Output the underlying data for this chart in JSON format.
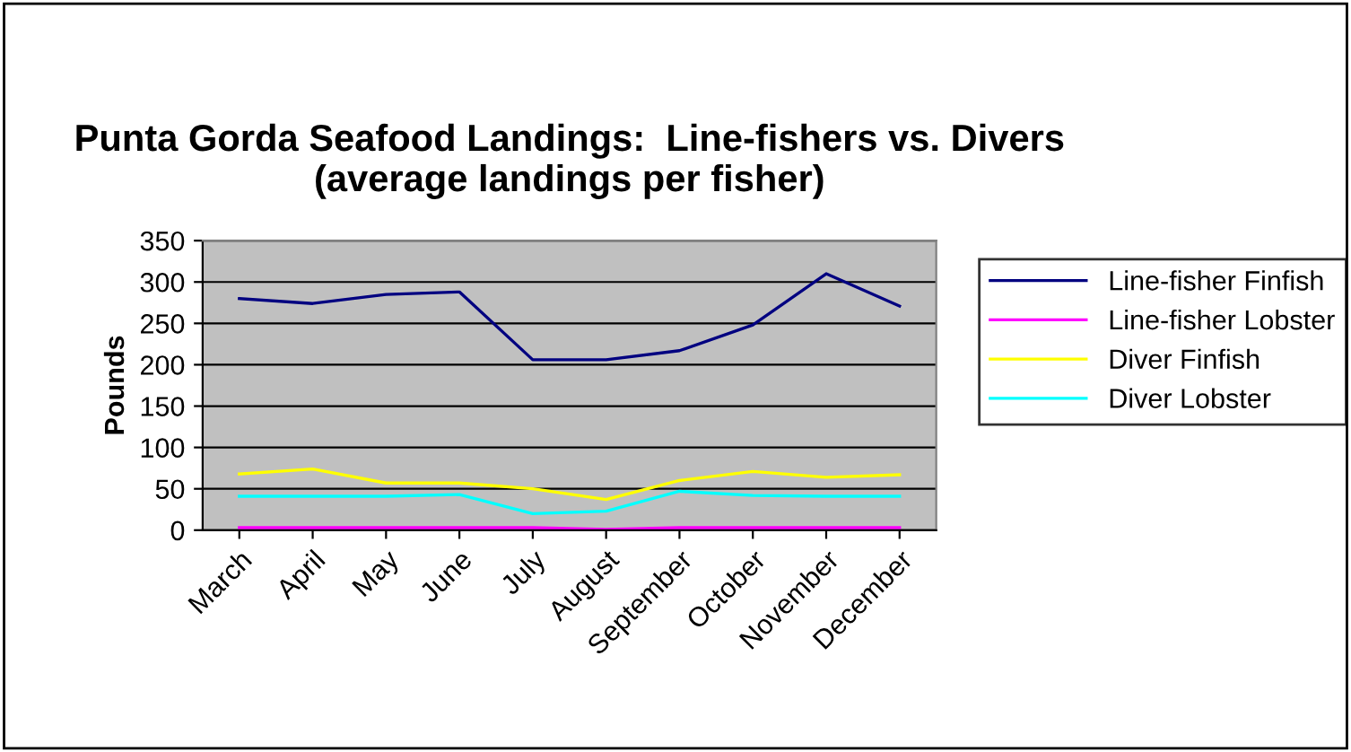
{
  "chart_data": {
    "type": "line",
    "title": "Punta Gorda Seafood Landings:  Line-fishers vs. Divers (average landings per fisher)",
    "ylabel": "Pounds",
    "categories": [
      "March",
      "April",
      "May",
      "June",
      "July",
      "August",
      "September",
      "October",
      "November",
      "December"
    ],
    "series": [
      {
        "name": "Line-fisher Finfish",
        "color": "#000080",
        "values": [
          280,
          274,
          285,
          288,
          206,
          206,
          217,
          248,
          310,
          271
        ]
      },
      {
        "name": "Line-fisher Lobster",
        "color": "#ff00ff",
        "values": [
          3,
          3,
          3,
          3,
          3,
          1,
          3,
          3,
          3,
          3
        ]
      },
      {
        "name": "Diver Finfish",
        "color": "#ffff00",
        "values": [
          68,
          74,
          57,
          57,
          50,
          37,
          60,
          71,
          64,
          67
        ]
      },
      {
        "name": "Diver Lobster",
        "color": "#00ffff",
        "values": [
          41,
          41,
          41,
          43,
          20,
          23,
          47,
          42,
          41,
          41
        ]
      }
    ],
    "ylim": [
      0,
      350
    ],
    "yticks": [
      0,
      50,
      100,
      150,
      200,
      250,
      300,
      350
    ],
    "grid": "y",
    "legend": "right",
    "marker": "none",
    "line_style": "solid"
  }
}
